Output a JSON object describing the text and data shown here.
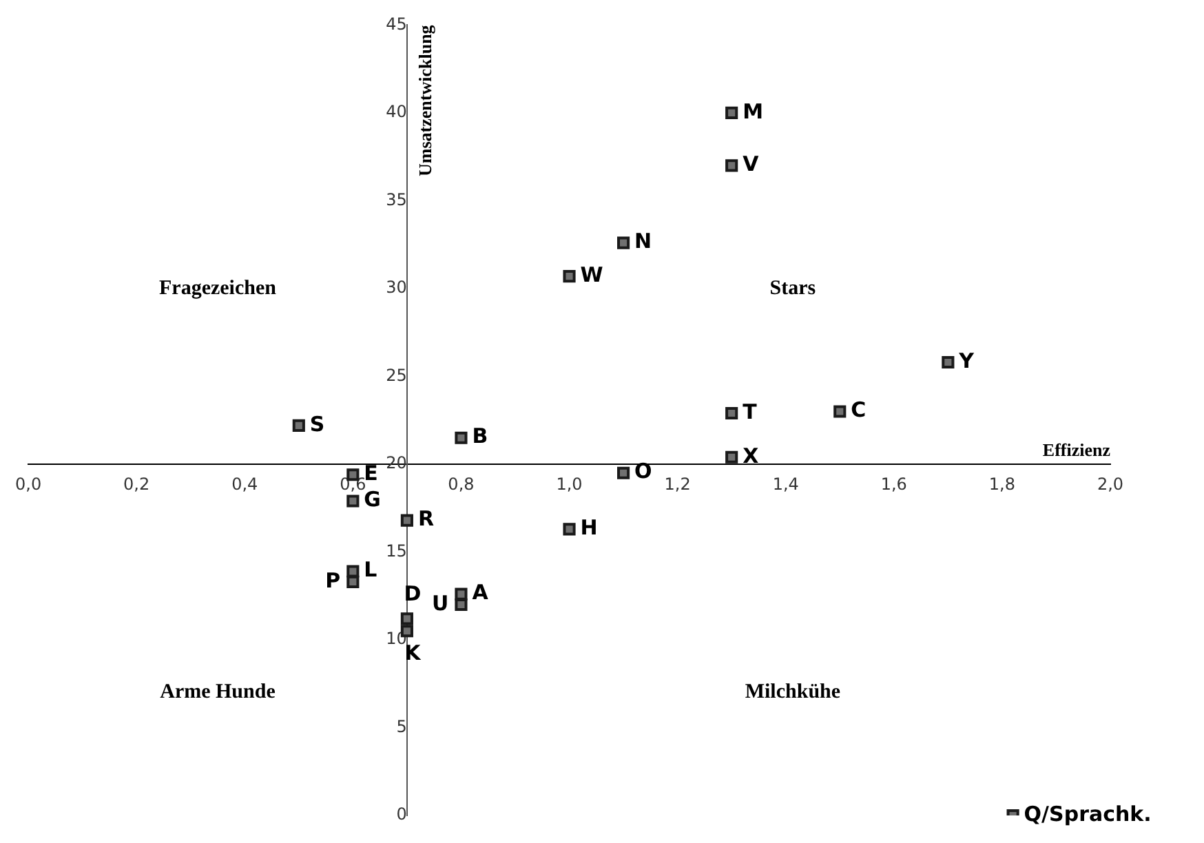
{
  "chart_data": {
    "type": "scatter",
    "xlabel": "Effizienz",
    "ylabel": "Umsatzentwicklung",
    "annotations": [
      "Fragezeichen",
      "Stars",
      "Arme Hunde",
      "Milchkühe"
    ],
    "xlim": [
      0,
      2
    ],
    "ylim": [
      0,
      45
    ],
    "xticks": [
      {
        "value": 0,
        "label": "0,0"
      },
      {
        "value": 0.2,
        "label": "0,2"
      },
      {
        "value": 0.4,
        "label": "0,4"
      },
      {
        "value": 0.6,
        "label": "0,6"
      },
      {
        "value": 0.8,
        "label": "0,8"
      },
      {
        "value": 1,
        "label": "1,0"
      },
      {
        "value": 1.2,
        "label": "1,2"
      },
      {
        "value": 1.4,
        "label": "1,4"
      },
      {
        "value": 1.6,
        "label": "1,6"
      },
      {
        "value": 1.8,
        "label": "1,8"
      },
      {
        "value": 2,
        "label": "2,0"
      }
    ],
    "yticks": [
      0,
      5,
      10,
      15,
      20,
      25,
      30,
      35,
      40,
      45
    ],
    "grid": false,
    "legend": false,
    "marker": "square",
    "series": [
      {
        "name": "M",
        "color": "#707070",
        "x": [
          1.3
        ],
        "values": [
          40
        ]
      },
      {
        "name": "V",
        "color": "#707070",
        "x": [
          1.3
        ],
        "values": [
          37
        ]
      },
      {
        "name": "N",
        "color": "#707070",
        "x": [
          1.1
        ],
        "values": [
          32.6
        ]
      },
      {
        "name": "W",
        "color": "#707070",
        "x": [
          1.0
        ],
        "values": [
          30.7
        ]
      },
      {
        "name": "Y",
        "color": "#707070",
        "x": [
          1.7
        ],
        "values": [
          25.8
        ]
      },
      {
        "name": "T",
        "color": "#707070",
        "x": [
          1.3
        ],
        "values": [
          22.9
        ]
      },
      {
        "name": "C",
        "color": "#707070",
        "x": [
          1.5
        ],
        "values": [
          23
        ]
      },
      {
        "name": "X",
        "color": "#707070",
        "x": [
          1.3
        ],
        "values": [
          20.4
        ]
      },
      {
        "name": "S",
        "color": "#707070",
        "x": [
          0.5
        ],
        "values": [
          22.2
        ]
      },
      {
        "name": "B",
        "color": "#707070",
        "x": [
          0.8
        ],
        "values": [
          21.5
        ]
      },
      {
        "name": "O",
        "color": "#707070",
        "x": [
          1.1
        ],
        "values": [
          19.5
        ]
      },
      {
        "name": "E",
        "color": "#707070",
        "x": [
          0.6
        ],
        "values": [
          19.4
        ]
      },
      {
        "name": "G",
        "color": "#707070",
        "x": [
          0.6
        ],
        "values": [
          17.9
        ]
      },
      {
        "name": "R",
        "color": "#707070",
        "x": [
          0.7
        ],
        "values": [
          16.8
        ]
      },
      {
        "name": "H",
        "color": "#707070",
        "x": [
          1.0
        ],
        "values": [
          16.3
        ]
      },
      {
        "name": "L",
        "color": "#707070",
        "x": [
          0.6
        ],
        "values": [
          13.9
        ]
      },
      {
        "name": "P",
        "color": "#707070",
        "x": [
          0.6
        ],
        "values": [
          13.3
        ]
      },
      {
        "name": "A",
        "color": "#707070",
        "x": [
          0.8
        ],
        "values": [
          12.6
        ]
      },
      {
        "name": "U",
        "color": "#707070",
        "x": [
          0.8
        ],
        "values": [
          12.0
        ]
      },
      {
        "name": "D",
        "color": "#707070",
        "x": [
          0.7
        ],
        "values": [
          11.2
        ]
      },
      {
        "name": "K",
        "color": "#707070",
        "x": [
          0.7
        ],
        "values": [
          10.5
        ]
      },
      {
        "name": "Q/Sprachk.",
        "color": "#707070",
        "x": [
          1.82
        ],
        "values": [
          0
        ]
      }
    ]
  }
}
